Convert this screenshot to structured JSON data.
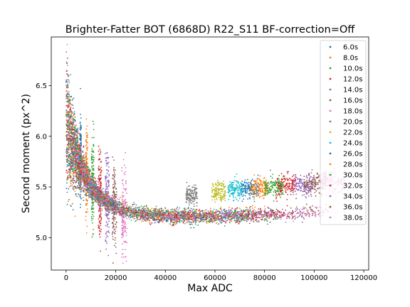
{
  "chart_data": {
    "type": "scatter",
    "title": "Brighter-Fatter BOT (6868D) R22_S11 BF-correction=Off",
    "xlabel": "Max ADC",
    "ylabel": "Second moment (px^2)",
    "xlim": [
      -6000,
      122000
    ],
    "ylim": [
      4.68,
      6.98
    ],
    "xticks": [
      0,
      20000,
      40000,
      60000,
      80000,
      100000,
      120000
    ],
    "xtick_labels": [
      "0",
      "20000",
      "40000",
      "60000",
      "80000",
      "100000",
      "120000"
    ],
    "yticks": [
      5.0,
      5.5,
      6.0,
      6.5
    ],
    "ytick_labels": [
      "5.0",
      "5.5",
      "6.0",
      "6.5"
    ],
    "grid": false,
    "legend_position": "top-right",
    "points_note": "each exposure time forms a cloud of many points spanning roughly 0 up to the listed max ADC; second moment falls from ~6 at low flux to a minimum near 5.2-5.3 around 30000 ADC, then rises slowly to ~5.45 at high flux",
    "series": [
      {
        "name": "6.0s",
        "color": "#1f77b4",
        "max_adc": 6000,
        "mean_y_at_max": 5.75
      },
      {
        "name": "8.0s",
        "color": "#ff7f0e",
        "max_adc": 8500,
        "mean_y_at_max": 5.65
      },
      {
        "name": "10.0s",
        "color": "#2ca02c",
        "max_adc": 11000,
        "mean_y_at_max": 5.55
      },
      {
        "name": "12.0s",
        "color": "#d62728",
        "max_adc": 14000,
        "mean_y_at_max": 5.45
      },
      {
        "name": "14.0s",
        "color": "#9467bd",
        "max_adc": 17000,
        "mean_y_at_max": 5.38
      },
      {
        "name": "16.0s",
        "color": "#8c564b",
        "max_adc": 20000,
        "mean_y_at_max": 5.3
      },
      {
        "name": "18.0s",
        "color": "#e377c2",
        "max_adc": 24000,
        "mean_y_at_max": 5.27
      },
      {
        "name": "20.0s",
        "color": "#7f7f7f",
        "max_adc": 52000,
        "mean_y_at_max": 5.42
      },
      {
        "name": "22.0s",
        "color": "#bcbd22",
        "max_adc": 63000,
        "mean_y_at_max": 5.45
      },
      {
        "name": "24.0s",
        "color": "#17becf",
        "max_adc": 70000,
        "mean_y_at_max": 5.47
      },
      {
        "name": "26.0s",
        "color": "#1f77b4",
        "max_adc": 76000,
        "mean_y_at_max": 5.48
      },
      {
        "name": "28.0s",
        "color": "#ff7f0e",
        "max_adc": 80000,
        "mean_y_at_max": 5.49
      },
      {
        "name": "30.0s",
        "color": "#2ca02c",
        "max_adc": 86000,
        "mean_y_at_max": 5.5
      },
      {
        "name": "32.0s",
        "color": "#d62728",
        "max_adc": 91000,
        "mean_y_at_max": 5.51
      },
      {
        "name": "34.0s",
        "color": "#9467bd",
        "max_adc": 98000,
        "mean_y_at_max": 5.52
      },
      {
        "name": "36.0s",
        "color": "#8c564b",
        "max_adc": 103000,
        "mean_y_at_max": 5.53
      },
      {
        "name": "38.0s",
        "color": "#e377c2",
        "max_adc": 110000,
        "mean_y_at_max": 5.55
      }
    ]
  }
}
